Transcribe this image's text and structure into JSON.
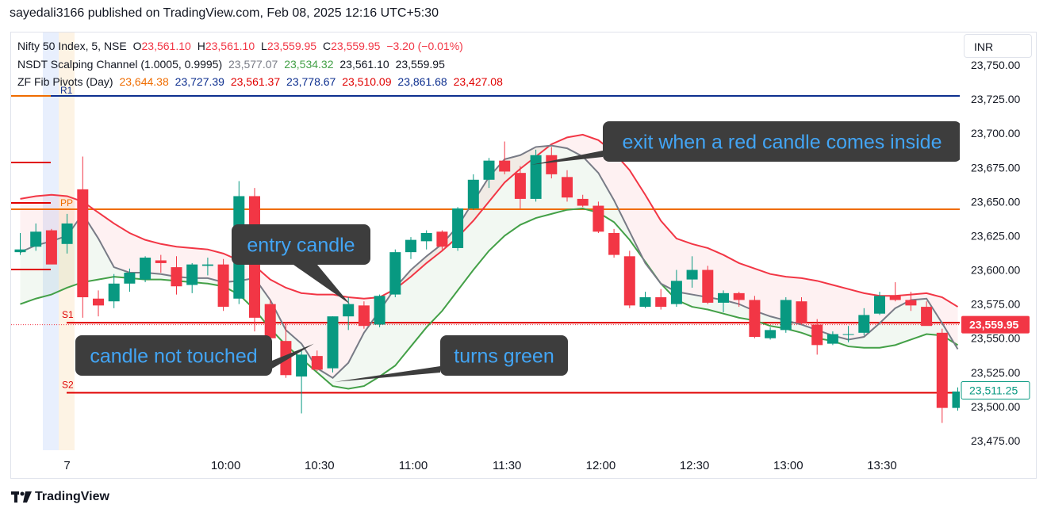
{
  "header": {
    "published": "sayedali3166 published on TradingView.com, Feb 08, 2025 12:16 UTC+5:30"
  },
  "currency_button": "INR",
  "footer": {
    "brand": "TradingView",
    "logo_icon": "tradingview-logo-icon"
  },
  "legend": {
    "symbol": {
      "name": "Nifty 50 Index, 5, NSE",
      "o_label": "O",
      "o": "23,561.10",
      "h_label": "H",
      "h": "23,561.10",
      "l_label": "L",
      "l": "23,559.95",
      "c_label": "C",
      "c": "23,559.95",
      "change": "−3.20 (−0.01%)"
    },
    "channel": {
      "name": "NSDT Scalping Channel (1.0005, 0.9995)",
      "v1": "23,577.07",
      "v2": "23,534.32",
      "v3": "23,561.10",
      "v4": "23,559.95"
    },
    "pivots": {
      "name": "ZF Fib Pivots (Day)",
      "v1": "23,644.38",
      "v2": "23,727.39",
      "v3": "23,561.37",
      "v4": "23,778.67",
      "v5": "23,510.09",
      "v6": "23,861.68",
      "v7": "23,427.08"
    }
  },
  "colors": {
    "up": "#089981",
    "down": "#f23645",
    "pivot": "#ef6c00",
    "r1": "#0d2f8f",
    "s_lines": "#e00000",
    "upper_band": "#f23645",
    "lower_band": "#43a047",
    "grey_line": "#787b86",
    "callout_bg": "#3d3d3d",
    "callout_text": "#42a5f5"
  },
  "chart_data": {
    "type": "candlestick",
    "symbol": "Nifty 50 Index",
    "timeframe": "5",
    "exchange": "NSE",
    "currency": "INR",
    "ylim": [
      23465,
      23770
    ],
    "y_ticks": [
      "23,750.00",
      "23,725.00",
      "23,700.00",
      "23,675.00",
      "23,650.00",
      "23,625.00",
      "23,600.00",
      "23,575.00",
      "23,550.00",
      "23,525.00",
      "23,500.00",
      "23,475.00"
    ],
    "y_tick_values": [
      23750,
      23725,
      23700,
      23675,
      23650,
      23625,
      23600,
      23575,
      23550,
      23525,
      23500,
      23475
    ],
    "x_ticks": [
      {
        "label": "7",
        "bar": 3
      },
      {
        "label": "10:00",
        "bar": 13
      },
      {
        "label": "10:30",
        "bar": 19
      },
      {
        "label": "11:00",
        "bar": 25
      },
      {
        "label": "11:30",
        "bar": 31
      },
      {
        "label": "12:00",
        "bar": 37
      },
      {
        "label": "12:30",
        "bar": 43
      },
      {
        "label": "13:00",
        "bar": 49
      },
      {
        "label": "13:30",
        "bar": 55
      }
    ],
    "candles": [
      {
        "o": 23613,
        "h": 23627,
        "l": 23611,
        "c": 23615
      },
      {
        "o": 23617,
        "h": 23634,
        "l": 23614,
        "c": 23628
      },
      {
        "o": 23629,
        "h": 23630,
        "l": 23605,
        "c": 23604
      },
      {
        "o": 23619,
        "h": 23641,
        "l": 23612,
        "c": 23634
      },
      {
        "o": 23659,
        "h": 23683,
        "l": 23565,
        "c": 23580
      },
      {
        "o": 23579,
        "h": 23585,
        "l": 23566,
        "c": 23574
      },
      {
        "o": 23577,
        "h": 23597,
        "l": 23572,
        "c": 23590
      },
      {
        "o": 23590,
        "h": 23601,
        "l": 23584,
        "c": 23598
      },
      {
        "o": 23593,
        "h": 23610,
        "l": 23591,
        "c": 23609
      },
      {
        "o": 23607,
        "h": 23611,
        "l": 23598,
        "c": 23605
      },
      {
        "o": 23602,
        "h": 23610,
        "l": 23582,
        "c": 23588
      },
      {
        "o": 23589,
        "h": 23605,
        "l": 23583,
        "c": 23604
      },
      {
        "o": 23603,
        "h": 23609,
        "l": 23596,
        "c": 23604
      },
      {
        "o": 23604,
        "h": 23608,
        "l": 23570,
        "c": 23573
      },
      {
        "o": 23579,
        "h": 23665,
        "l": 23575,
        "c": 23654
      },
      {
        "o": 23654,
        "h": 23660,
        "l": 23555,
        "c": 23565
      },
      {
        "o": 23575,
        "h": 23578,
        "l": 23533,
        "c": 23550
      },
      {
        "o": 23548,
        "h": 23562,
        "l": 23521,
        "c": 23523
      },
      {
        "o": 23522,
        "h": 23542,
        "l": 23495,
        "c": 23538
      },
      {
        "o": 23537,
        "h": 23541,
        "l": 23526,
        "c": 23527
      },
      {
        "o": 23528,
        "h": 23566,
        "l": 23525,
        "c": 23566
      },
      {
        "o": 23566,
        "h": 23580,
        "l": 23556,
        "c": 23575
      },
      {
        "o": 23574,
        "h": 23577,
        "l": 23557,
        "c": 23559
      },
      {
        "o": 23560,
        "h": 23582,
        "l": 23558,
        "c": 23581
      },
      {
        "o": 23582,
        "h": 23615,
        "l": 23580,
        "c": 23613
      },
      {
        "o": 23613,
        "h": 23624,
        "l": 23608,
        "c": 23622
      },
      {
        "o": 23621,
        "h": 23629,
        "l": 23615,
        "c": 23627
      },
      {
        "o": 23628,
        "h": 23629,
        "l": 23615,
        "c": 23617
      },
      {
        "o": 23616,
        "h": 23646,
        "l": 23614,
        "c": 23645
      },
      {
        "o": 23645,
        "h": 23670,
        "l": 23644,
        "c": 23666
      },
      {
        "o": 23666,
        "h": 23682,
        "l": 23660,
        "c": 23680
      },
      {
        "o": 23680,
        "h": 23694,
        "l": 23670,
        "c": 23672
      },
      {
        "o": 23671,
        "h": 23676,
        "l": 23645,
        "c": 23652
      },
      {
        "o": 23652,
        "h": 23688,
        "l": 23650,
        "c": 23684
      },
      {
        "o": 23684,
        "h": 23690,
        "l": 23667,
        "c": 23670
      },
      {
        "o": 23668,
        "h": 23673,
        "l": 23650,
        "c": 23653
      },
      {
        "o": 23652,
        "h": 23655,
        "l": 23646,
        "c": 23647
      },
      {
        "o": 23647,
        "h": 23650,
        "l": 23627,
        "c": 23628
      },
      {
        "o": 23627,
        "h": 23630,
        "l": 23609,
        "c": 23611
      },
      {
        "o": 23610,
        "h": 23614,
        "l": 23572,
        "c": 23574
      },
      {
        "o": 23573,
        "h": 23584,
        "l": 23572,
        "c": 23580
      },
      {
        "o": 23580,
        "h": 23586,
        "l": 23571,
        "c": 23573
      },
      {
        "o": 23575,
        "h": 23600,
        "l": 23573,
        "c": 23592
      },
      {
        "o": 23593,
        "h": 23610,
        "l": 23587,
        "c": 23600
      },
      {
        "o": 23600,
        "h": 23603,
        "l": 23575,
        "c": 23576
      },
      {
        "o": 23576,
        "h": 23585,
        "l": 23569,
        "c": 23583
      },
      {
        "o": 23583,
        "h": 23584,
        "l": 23573,
        "c": 23578
      },
      {
        "o": 23578,
        "h": 23581,
        "l": 23550,
        "c": 23551
      },
      {
        "o": 23550,
        "h": 23558,
        "l": 23549,
        "c": 23556
      },
      {
        "o": 23556,
        "h": 23580,
        "l": 23554,
        "c": 23578
      },
      {
        "o": 23577,
        "h": 23580,
        "l": 23560,
        "c": 23561
      },
      {
        "o": 23560,
        "h": 23564,
        "l": 23538,
        "c": 23545
      },
      {
        "o": 23546,
        "h": 23555,
        "l": 23545,
        "c": 23553
      },
      {
        "o": 23553,
        "h": 23559,
        "l": 23547,
        "c": 23553
      },
      {
        "o": 23554,
        "h": 23572,
        "l": 23552,
        "c": 23567
      },
      {
        "o": 23568,
        "h": 23584,
        "l": 23567,
        "c": 23581
      },
      {
        "o": 23581,
        "h": 23591,
        "l": 23577,
        "c": 23578
      },
      {
        "o": 23578,
        "h": 23584,
        "l": 23570,
        "c": 23574
      },
      {
        "o": 23573,
        "h": 23577,
        "l": 23560,
        "c": 23559
      },
      {
        "o": 23554,
        "h": 23557,
        "l": 23488,
        "c": 23499
      },
      {
        "o": 23499,
        "h": 23514,
        "l": 23497,
        "c": 23511
      }
    ],
    "channel": {
      "name": "NSDT Scalping Channel (1.0005, 0.9995)",
      "upper": [
        23652,
        23654,
        23655,
        23654,
        23650,
        23642,
        23634,
        23627,
        23622,
        23619,
        23617,
        23616,
        23615,
        23612,
        23607,
        23603,
        23593,
        23587,
        23583,
        23582,
        23582,
        23580,
        23579,
        23580,
        23586,
        23595,
        23605,
        23614,
        23624,
        23636,
        23650,
        23664,
        23674,
        23683,
        23692,
        23697,
        23699,
        23695,
        23686,
        23673,
        23655,
        23636,
        23623,
        23619,
        23616,
        23611,
        23605,
        23601,
        23597,
        23595,
        23594,
        23592,
        23589,
        23586,
        23583,
        23581,
        23581,
        23582,
        23583,
        23580,
        23573
      ],
      "lower": [
        23575,
        23579,
        23582,
        23587,
        23591,
        23593,
        23595,
        23594,
        23593,
        23593,
        23592,
        23591,
        23590,
        23588,
        23582,
        23571,
        23557,
        23545,
        23535,
        23525,
        23515,
        23513,
        23515,
        23522,
        23530,
        23544,
        23558,
        23570,
        23585,
        23600,
        23614,
        23625,
        23633,
        23638,
        23641,
        23644,
        23645,
        23642,
        23635,
        23622,
        23606,
        23590,
        23578,
        23573,
        23571,
        23568,
        23565,
        23563,
        23559,
        23557,
        23554,
        23550,
        23548,
        23544,
        23543,
        23543,
        23545,
        23549,
        23553,
        23552,
        23545
      ],
      "mid": [
        23613,
        23618,
        23621,
        23625,
        23641,
        23623,
        23602,
        23598,
        23598,
        23597,
        23595,
        23594,
        23594,
        23591,
        23592,
        23594,
        23578,
        23556,
        23546,
        23528,
        23521,
        23532,
        23554,
        23570,
        23587,
        23600,
        23610,
        23619,
        23632,
        23650,
        23668,
        23681,
        23684,
        23690,
        23691,
        23689,
        23683,
        23671,
        23651,
        23628,
        23605,
        23590,
        23584,
        23582,
        23580,
        23578,
        23575,
        23570,
        23566,
        23563,
        23560,
        23556,
        23552,
        23549,
        23551,
        23561,
        23572,
        23578,
        23579,
        23561,
        23542
      ],
      "upper_value": "23,577.07",
      "lower_value": "23,534.32"
    },
    "pivots": {
      "name": "ZF Fib Pivots (Day)",
      "PP": 23644.38,
      "R1": 23727.39,
      "S1": 23561.37,
      "R2": 23778.67,
      "S2": 23510.09,
      "R3": 23861.68,
      "S3": 23427.08,
      "labels": {
        "pp": "PP",
        "r1": "R1",
        "s1": "S1",
        "s2": "S2"
      }
    },
    "price_labels": {
      "last": {
        "value": 23559.95,
        "text": "23,559.95"
      },
      "s2": {
        "value": 23511.25,
        "text": "23,511.25"
      }
    },
    "annotations": [
      {
        "text": "exit when a red candle comes inside",
        "target_bar": 33,
        "target_price": 23677
      },
      {
        "text": "entry candle",
        "target_bar": 21,
        "target_price": 23575
      },
      {
        "text": "candle not touched",
        "target_bar": 19,
        "target_price": 23546
      },
      {
        "text": "turns green",
        "target_bar": 20,
        "target_price": 23518
      }
    ]
  }
}
